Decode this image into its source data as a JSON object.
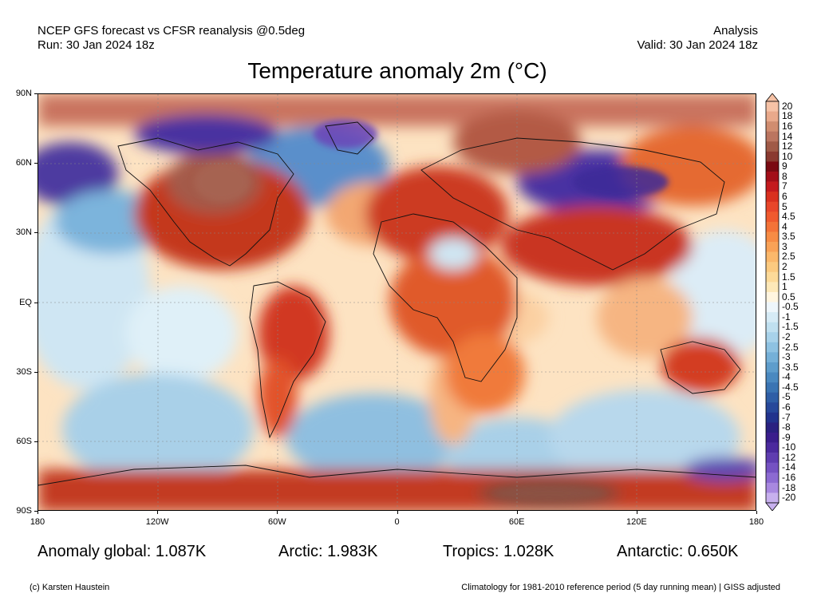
{
  "header": {
    "left_line1": "NCEP GFS forecast vs CFSR reanalysis @0.5deg",
    "left_line2": "Run: 30 Jan 2024 18z",
    "right_line1": "Analysis",
    "right_line2": "Valid: 30 Jan 2024 18z"
  },
  "title": "Temperature anomaly 2m (°C)",
  "axes": {
    "lat_labels": [
      "90N",
      "60N",
      "30N",
      "EQ",
      "30S",
      "60S",
      "90S"
    ],
    "lon_labels": [
      "180",
      "120W",
      "60W",
      "0",
      "60E",
      "120E",
      "180"
    ]
  },
  "colorbar": {
    "labels": [
      "20",
      "18",
      "16",
      "14",
      "12",
      "10",
      "9",
      "8",
      "7",
      "6",
      "5",
      "4.5",
      "4",
      "3.5",
      "3",
      "2.5",
      "2",
      "1.5",
      "1",
      "0.5",
      "-0.5",
      "-1",
      "-1.5",
      "-2",
      "-2.5",
      "-3",
      "-3.5",
      "-4",
      "-4.5",
      "-5",
      "-6",
      "-7",
      "-8",
      "-9",
      "-10",
      "-12",
      "-14",
      "-16",
      "-18",
      "-20"
    ],
    "colors": [
      "#f6c2a6",
      "#e9a98b",
      "#d18d70",
      "#bb7560",
      "#a05a47",
      "#8a3a30",
      "#7a0a12",
      "#a30e18",
      "#c41a1e",
      "#d9301f",
      "#e8462a",
      "#f05a2e",
      "#f47338",
      "#f78c45",
      "#f9a257",
      "#fbb86b",
      "#fcca80",
      "#fdda99",
      "#fde8b8",
      "#fff5e0",
      "#eef6fb",
      "#d6ebf6",
      "#c0e0f0",
      "#a8d2ea",
      "#8ec2e2",
      "#75b0d8",
      "#5e9dcc",
      "#4a89c0",
      "#3a74b3",
      "#2f5ea6",
      "#27489a",
      "#22338d",
      "#2a2180",
      "#3a1e8c",
      "#4b2a9e",
      "#5f3db0",
      "#7552c2",
      "#8c6ad2",
      "#a888e0",
      "#c7b0ee"
    ]
  },
  "stats": {
    "global": "Anomaly global: 1.087K",
    "arctic": "Arctic: 1.983K",
    "tropics": "Tropics: 1.028K",
    "antarctic": "Antarctic: 0.650K"
  },
  "footer": {
    "credit": "(c) Karsten Haustein",
    "note": "Climatology for 1981-2010 reference period (5 day running mean) | GISS adjusted"
  }
}
